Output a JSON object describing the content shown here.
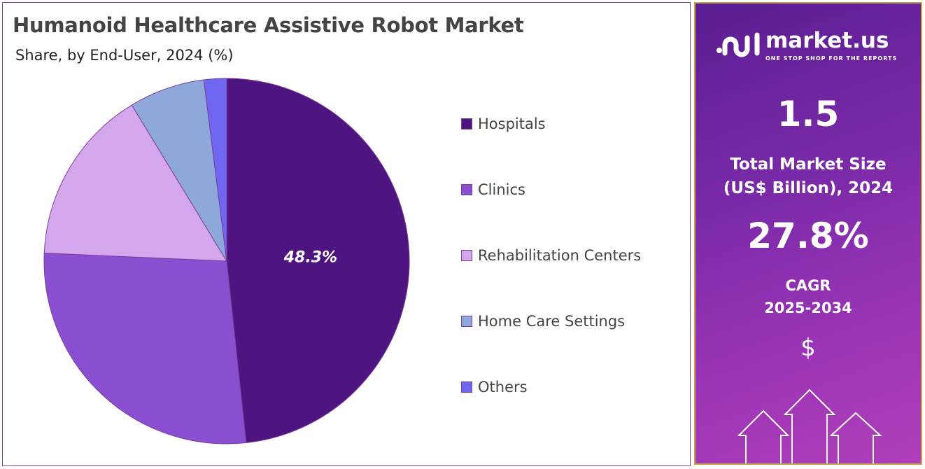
{
  "header": {
    "title": "Humanoid Healthcare Assistive Robot Market",
    "subtitle": "Share, by End-User, 2024 (%)"
  },
  "chart_data": {
    "type": "pie",
    "title": "Humanoid Healthcare Assistive Robot Market",
    "subtitle": "Share, by End-User, 2024 (%)",
    "categories": [
      "Hospitals",
      "Clinics",
      "Rehabilitation Centers",
      "Home Care Settings",
      "Others"
    ],
    "values": [
      48.3,
      27.4,
      15.6,
      6.7,
      2.0
    ],
    "colors": [
      "#4e1580",
      "#8a4fd0",
      "#d4a6ec",
      "#8ea8dc",
      "#6f66f2"
    ],
    "data_labels": [
      {
        "category": "Hospitals",
        "text": "48.3%"
      }
    ],
    "legend": "right",
    "start": "top, clockwise"
  },
  "sidebar": {
    "brand": "market.us",
    "tagline": "ONE STOP SHOP FOR THE REPORTS",
    "market_size": "1.5",
    "market_size_label_1": "Total Market Size",
    "market_size_label_2": "(US$ Billion), 2024",
    "cagr": "27.8%",
    "cagr_label_1": "CAGR",
    "cagr_label_2": "2025-2034",
    "currency_symbol": "$"
  }
}
